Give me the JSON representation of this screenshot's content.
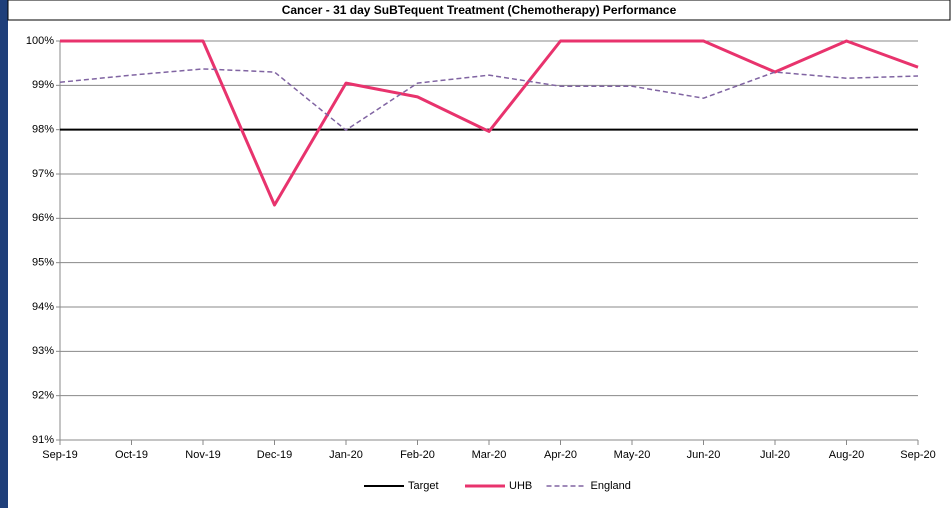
{
  "chart_data": {
    "type": "line",
    "title": "Cancer - 31 day SuBTequent Treatment (Chemotherapy) Performance",
    "categories": [
      "Sep-19",
      "Oct-19",
      "Nov-19",
      "Dec-19",
      "Jan-20",
      "Feb-20",
      "Mar-20",
      "Apr-20",
      "May-20",
      "Jun-20",
      "Jul-20",
      "Aug-20",
      "Sep-20"
    ],
    "series": [
      {
        "name": "Target",
        "color": "#000000",
        "line_width": 2,
        "line_style": "solid",
        "values": [
          98,
          98,
          98,
          98,
          98,
          98,
          98,
          98,
          98,
          98,
          98,
          98,
          98
        ]
      },
      {
        "name": "UHB",
        "color": "#e8336d",
        "line_width": 3,
        "line_style": "solid",
        "values": [
          100,
          100,
          100,
          96.3,
          99.05,
          98.74,
          97.96,
          100,
          100,
          100,
          99.3,
          100,
          99.41
        ]
      },
      {
        "name": "England",
        "color": "#8064a2",
        "line_width": 1.5,
        "line_style": "dashed",
        "values": [
          99.07,
          99.23,
          99.37,
          99.3,
          97.99,
          99.05,
          99.23,
          98.98,
          98.98,
          98.71,
          99.3,
          99.16,
          99.21
        ]
      }
    ],
    "ylim": [
      91,
      100
    ],
    "yticks": [
      {
        "value": 91,
        "label": "91%"
      },
      {
        "value": 92,
        "label": "92%"
      },
      {
        "value": 93,
        "label": "93%"
      },
      {
        "value": 94,
        "label": "94%"
      },
      {
        "value": 95,
        "label": "95%"
      },
      {
        "value": 96,
        "label": "96%"
      },
      {
        "value": 97,
        "label": "97%"
      },
      {
        "value": 98,
        "label": "98%"
      },
      {
        "value": 99,
        "label": "99%"
      },
      {
        "value": 100,
        "label": "100%"
      }
    ],
    "grid": true,
    "legend": "bottom"
  }
}
